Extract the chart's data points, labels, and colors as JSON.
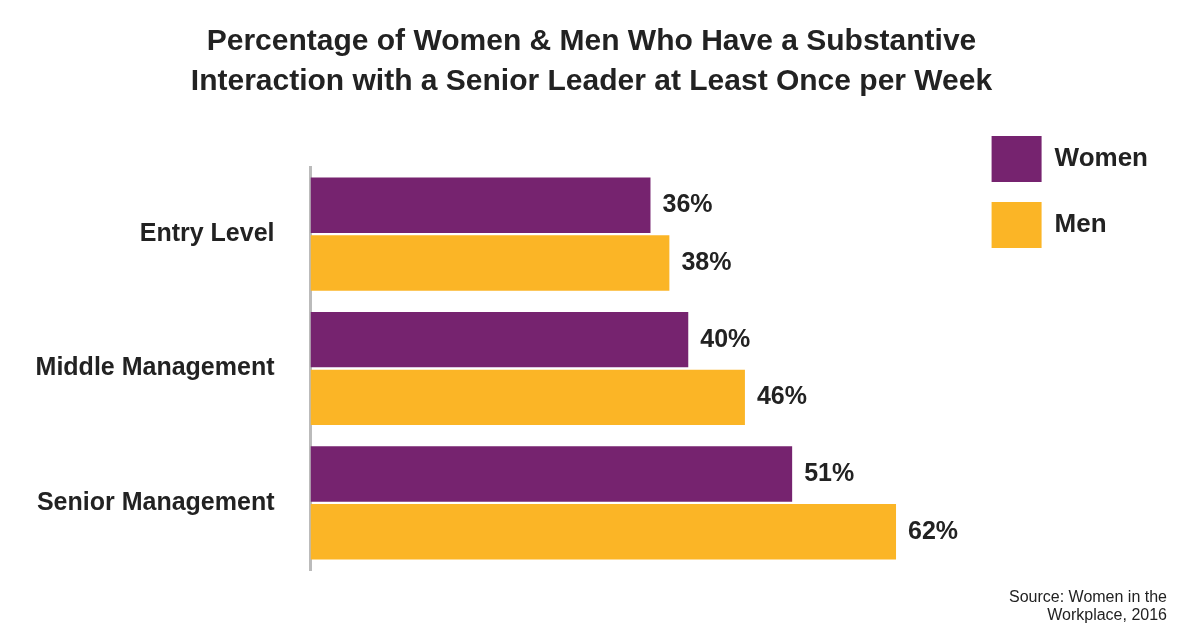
{
  "chart_data": {
    "type": "bar",
    "orientation": "horizontal",
    "title": "Percentage of Women & Men Who Have a Substantive Interaction with a Senior Leader at Least Once per Week",
    "categories": [
      "Entry Level",
      "Middle Management",
      "Senior Management"
    ],
    "series": [
      {
        "name": "Women",
        "color": "#76236f",
        "values": [
          36,
          40,
          51
        ],
        "value_labels": [
          "36%",
          "40%",
          "51%"
        ]
      },
      {
        "name": "Men",
        "color": "#fbb526",
        "values": [
          38,
          46,
          62
        ],
        "value_labels": [
          "38%",
          "46%",
          "62%"
        ]
      }
    ],
    "legend": "top right",
    "grid": false,
    "annotations": [
      "Source: Women in the Workplace, 2016"
    ]
  }
}
